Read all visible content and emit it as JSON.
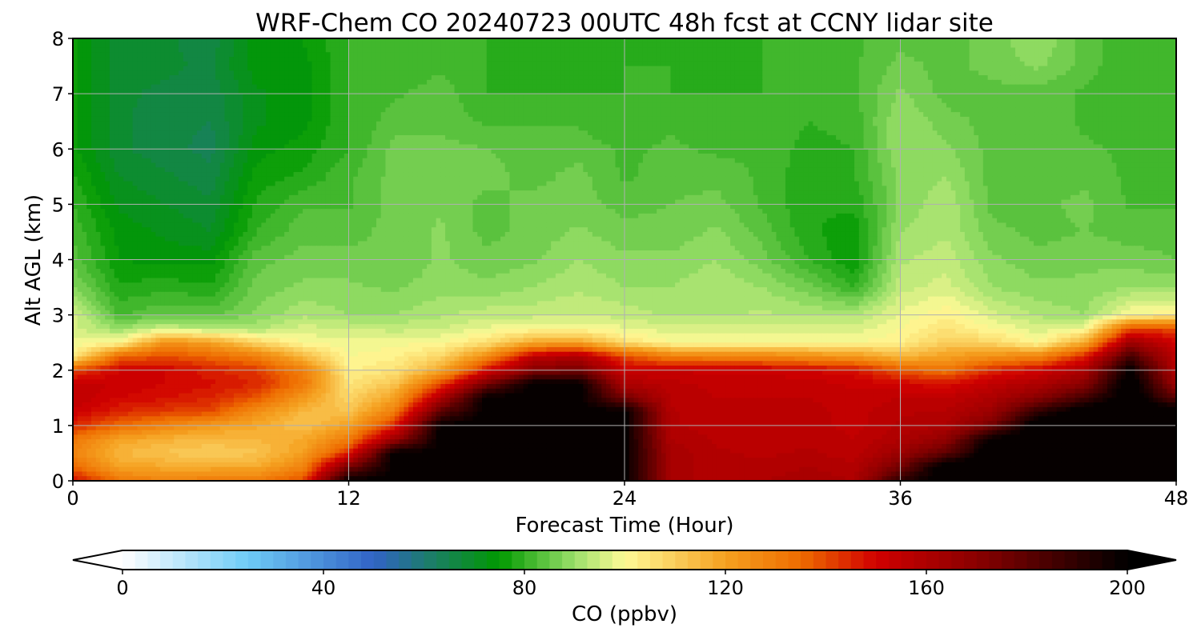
{
  "chart_data": {
    "type": "heatmap",
    "title": "WRF-Chem CO  20240723 00UTC 48h fcst at CCNY lidar site",
    "xlabel": "Forecast Time (Hour)",
    "ylabel": "Alt AGL (km)",
    "xlim": [
      0,
      48
    ],
    "ylim": [
      0,
      8
    ],
    "xticks": [
      0,
      12,
      24,
      36,
      48
    ],
    "yticks": [
      0,
      1,
      2,
      3,
      4,
      5,
      6,
      7,
      8
    ],
    "grid": true,
    "colorbar": {
      "label": "CO  (ppbv)",
      "range": [
        0,
        200
      ],
      "ticks": [
        0,
        40,
        80,
        120,
        160,
        200
      ],
      "extend": "both",
      "colors": [
        {
          "v": 0,
          "c": "#ffffff"
        },
        {
          "v": 25,
          "c": "#6ecbf5"
        },
        {
          "v": 50,
          "c": "#3163c6"
        },
        {
          "v": 60,
          "c": "#1e7a72"
        },
        {
          "v": 75,
          "c": "#009900"
        },
        {
          "v": 90,
          "c": "#9be06a"
        },
        {
          "v": 100,
          "c": "#fffa96"
        },
        {
          "v": 120,
          "c": "#f5a020"
        },
        {
          "v": 135,
          "c": "#ee6c00"
        },
        {
          "v": 150,
          "c": "#d00000"
        },
        {
          "v": 170,
          "c": "#8a0000"
        },
        {
          "v": 200,
          "c": "#000000"
        }
      ]
    },
    "time_hours": [
      0,
      2,
      4,
      6,
      8,
      10,
      12,
      14,
      16,
      18,
      20,
      22,
      24,
      26,
      28,
      30,
      32,
      34,
      36,
      38,
      40,
      42,
      44,
      46,
      48
    ],
    "altitude_km": [
      0,
      0.25,
      0.5,
      0.75,
      1,
      1.25,
      1.5,
      1.75,
      2,
      2.25,
      2.5,
      2.75,
      3,
      3.5,
      4,
      4.5,
      5,
      5.5,
      6,
      6.5,
      7,
      7.5,
      8
    ],
    "co_ppbv": [
      [
        150,
        132,
        128,
        130,
        130,
        140,
        200,
        200,
        200,
        200,
        200,
        200,
        200,
        162,
        158,
        160,
        162,
        160,
        190,
        205,
        205,
        205,
        205,
        205,
        205
      ],
      [
        135,
        120,
        118,
        118,
        118,
        128,
        175,
        200,
        200,
        200,
        200,
        200,
        200,
        162,
        158,
        158,
        160,
        158,
        175,
        205,
        205,
        205,
        205,
        205,
        205
      ],
      [
        128,
        115,
        112,
        110,
        112,
        120,
        145,
        200,
        200,
        200,
        200,
        200,
        200,
        162,
        158,
        157,
        158,
        156,
        165,
        180,
        205,
        205,
        205,
        205,
        205
      ],
      [
        132,
        120,
        116,
        114,
        115,
        118,
        130,
        165,
        200,
        200,
        200,
        200,
        200,
        160,
        157,
        156,
        157,
        155,
        160,
        168,
        200,
        205,
        205,
        205,
        205
      ],
      [
        145,
        135,
        128,
        122,
        118,
        112,
        120,
        145,
        200,
        200,
        200,
        200,
        200,
        158,
        156,
        155,
        156,
        154,
        158,
        160,
        175,
        205,
        205,
        205,
        205
      ],
      [
        152,
        145,
        142,
        140,
        125,
        115,
        112,
        130,
        180,
        200,
        200,
        200,
        200,
        158,
        155,
        155,
        156,
        154,
        157,
        158,
        165,
        190,
        205,
        205,
        205
      ],
      [
        155,
        150,
        148,
        145,
        138,
        122,
        108,
        120,
        160,
        200,
        200,
        200,
        175,
        157,
        155,
        155,
        155,
        153,
        155,
        155,
        160,
        170,
        185,
        205,
        180
      ],
      [
        154,
        152,
        150,
        148,
        145,
        132,
        105,
        112,
        140,
        175,
        200,
        200,
        160,
        156,
        154,
        154,
        154,
        152,
        150,
        148,
        155,
        160,
        170,
        205,
        165
      ],
      [
        140,
        150,
        150,
        146,
        142,
        130,
        102,
        105,
        118,
        148,
        170,
        175,
        152,
        152,
        152,
        152,
        150,
        148,
        138,
        132,
        145,
        150,
        160,
        200,
        158
      ],
      [
        102,
        135,
        140,
        135,
        130,
        115,
        100,
        102,
        108,
        125,
        155,
        160,
        140,
        130,
        128,
        128,
        125,
        122,
        115,
        120,
        125,
        128,
        145,
        185,
        155
      ],
      [
        98,
        100,
        125,
        120,
        108,
        100,
        98,
        99,
        100,
        106,
        118,
        120,
        106,
        100,
        100,
        100,
        100,
        100,
        102,
        110,
        108,
        100,
        118,
        165,
        150
      ],
      [
        96,
        90,
        95,
        92,
        92,
        96,
        95,
        94,
        95,
        98,
        100,
        100,
        98,
        96,
        96,
        96,
        96,
        96,
        100,
        105,
        100,
        96,
        98,
        140,
        140
      ],
      [
        96,
        82,
        85,
        84,
        88,
        92,
        90,
        90,
        92,
        94,
        94,
        95,
        94,
        92,
        92,
        93,
        92,
        92,
        98,
        102,
        96,
        92,
        90,
        100,
        102
      ],
      [
        88,
        78,
        79,
        78,
        86,
        88,
        88,
        87,
        89,
        88,
        90,
        92,
        90,
        90,
        92,
        90,
        86,
        80,
        94,
        96,
        90,
        88,
        88,
        90,
        90
      ],
      [
        84,
        75,
        74,
        74,
        84,
        86,
        86,
        85,
        88,
        86,
        87,
        90,
        88,
        88,
        90,
        86,
        80,
        75,
        92,
        94,
        88,
        86,
        87,
        86,
        85
      ],
      [
        82,
        74,
        72,
        70,
        80,
        84,
        84,
        86,
        88,
        84,
        86,
        88,
        86,
        86,
        88,
        84,
        78,
        76,
        90,
        92,
        86,
        84,
        85,
        84,
        84
      ],
      [
        80,
        72,
        70,
        68,
        78,
        82,
        82,
        86,
        87,
        84,
        86,
        86,
        84,
        85,
        86,
        82,
        78,
        78,
        88,
        92,
        84,
        84,
        86,
        82,
        82
      ],
      [
        78,
        70,
        68,
        66,
        76,
        78,
        82,
        86,
        86,
        86,
        84,
        86,
        82,
        84,
        84,
        82,
        78,
        80,
        88,
        90,
        84,
        84,
        84,
        82,
        82
      ],
      [
        76,
        68,
        66,
        64,
        74,
        76,
        80,
        86,
        86,
        85,
        84,
        84,
        82,
        83,
        82,
        82,
        79,
        80,
        90,
        88,
        84,
        84,
        83,
        82,
        82
      ],
      [
        76,
        68,
        66,
        65,
        72,
        74,
        80,
        84,
        84,
        82,
        82,
        82,
        80,
        82,
        80,
        82,
        80,
        81,
        90,
        86,
        84,
        84,
        82,
        80,
        80
      ],
      [
        76,
        68,
        67,
        66,
        72,
        74,
        80,
        82,
        84,
        80,
        80,
        80,
        80,
        80,
        80,
        80,
        80,
        82,
        88,
        84,
        84,
        84,
        82,
        80,
        80
      ],
      [
        76,
        68,
        68,
        67,
        74,
        74,
        80,
        80,
        82,
        80,
        79,
        78,
        80,
        80,
        79,
        80,
        82,
        82,
        86,
        84,
        86,
        88,
        84,
        80,
        80
      ],
      [
        76,
        68,
        68,
        66,
        74,
        75,
        80,
        80,
        82,
        80,
        78,
        78,
        79,
        80,
        79,
        80,
        82,
        82,
        84,
        84,
        86,
        90,
        84,
        80,
        80
      ]
    ]
  }
}
